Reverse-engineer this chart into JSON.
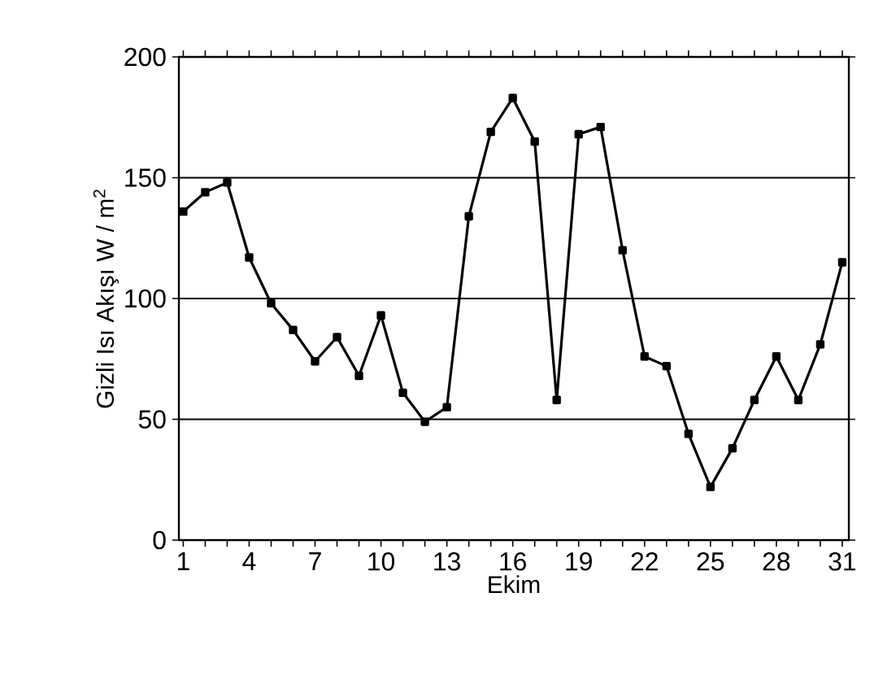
{
  "chart_data": {
    "type": "line",
    "xlabel": "Ekim",
    "ylabel": "Gizli Isı Akışı W / m$^{2}$",
    "x": [
      1,
      2,
      3,
      4,
      5,
      6,
      7,
      8,
      9,
      10,
      11,
      12,
      13,
      14,
      15,
      16,
      17,
      18,
      19,
      20,
      21,
      22,
      23,
      24,
      25,
      26,
      27,
      28,
      29,
      30,
      31
    ],
    "series": [
      {
        "color": "#000000",
        "values": [
          136,
          144,
          148,
          117,
          98,
          87,
          74,
          84,
          68,
          93,
          61,
          49,
          55,
          134,
          169,
          183,
          165,
          58,
          168,
          171,
          120,
          76,
          72,
          44,
          22,
          38,
          58,
          76,
          58,
          81,
          115
        ]
      }
    ],
    "xlim": [
      0.8,
      31.3
    ],
    "ylim": [
      0,
      200
    ],
    "xticks": [
      1,
      {
        "value": 2,
        "label": null
      },
      {
        "value": 3,
        "label": null
      },
      4,
      {
        "value": 5,
        "label": null
      },
      {
        "value": 6,
        "label": null
      },
      7,
      {
        "value": 8,
        "label": null
      },
      {
        "value": 9,
        "label": null
      },
      10,
      {
        "value": 11,
        "label": null
      },
      {
        "value": 12,
        "label": null
      },
      13,
      {
        "value": 14,
        "label": null
      },
      {
        "value": 15,
        "label": null
      },
      16,
      {
        "value": 17,
        "label": null
      },
      {
        "value": 18,
        "label": null
      },
      19,
      {
        "value": 20,
        "label": null
      },
      {
        "value": 21,
        "label": null
      },
      22,
      {
        "value": 23,
        "label": null
      },
      {
        "value": 24,
        "label": null
      },
      25,
      {
        "value": 26,
        "label": null
      },
      {
        "value": 27,
        "label": null
      },
      28,
      {
        "value": 29,
        "label": null
      },
      {
        "value": 30,
        "label": null
      },
      31
    ],
    "yticks": [
      0,
      50,
      100,
      150,
      200
    ],
    "grid": "y",
    "marker": "square",
    "line_style": "solid"
  }
}
